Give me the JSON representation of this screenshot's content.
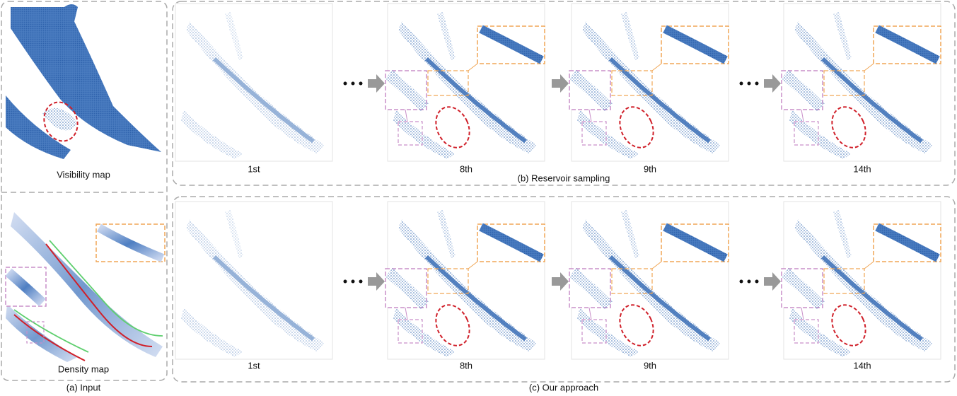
{
  "input": {
    "visibility_label": "Visibility map",
    "density_label": "Density map",
    "caption": "(a) Input"
  },
  "reservoir": {
    "caption": "(b) Reservoir sampling",
    "frames": [
      "1st",
      "8th",
      "9th",
      "14th"
    ]
  },
  "ours": {
    "caption": "(c) Our approach",
    "frames": [
      "1st",
      "8th",
      "9th",
      "14th"
    ]
  }
}
